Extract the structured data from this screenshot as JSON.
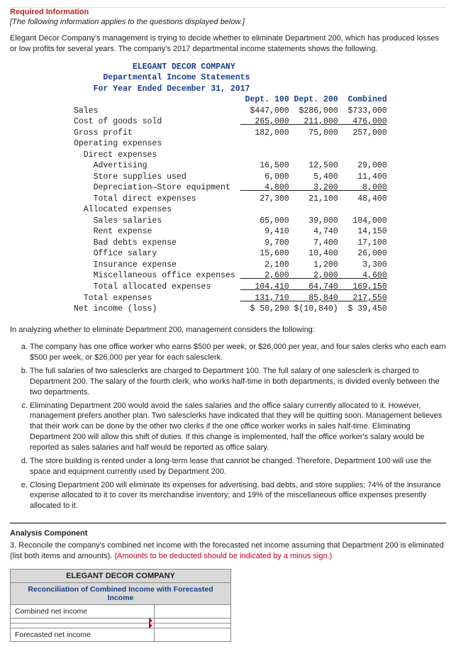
{
  "header": {
    "cutoff_label": "Required Information",
    "note": "[The following information applies to the questions displayed below.]",
    "intro": "Elegant Decor Company's management is trying to decide whether to eliminate Department 200, which has produced losses or low profits for several years. The company's 2017 departmental income statements shows the following."
  },
  "stmt": {
    "company": "ELEGANT DECOR COMPANY",
    "title": "Departmental Income Statements",
    "period": "For Year Ended December 31, 2017",
    "cols": {
      "c1": "Dept. 100",
      "c2": "Dept. 200",
      "c3": "Combined"
    },
    "rows": {
      "sales": {
        "label": "Sales",
        "c1": "$447,000",
        "c2": "$286,000",
        "c3": "$733,000"
      },
      "cogs": {
        "label": "Cost of goods sold",
        "c1": " 265,000",
        "c2": " 211,000",
        "c3": " 476,000",
        "ul": true
      },
      "gp": {
        "label": "Gross profit",
        "c1": " 182,000",
        "c2": "  75,000",
        "c3": " 257,000"
      },
      "opex_hdr": {
        "label": "Operating expenses"
      },
      "dir_hdr": {
        "label": "  Direct expenses"
      },
      "adv": {
        "label": "    Advertising",
        "c1": "  16,500",
        "c2": "  12,500",
        "c3": "  29,000"
      },
      "supp": {
        "label": "    Store supplies used",
        "c1": "   6,000",
        "c2": "   5,400",
        "c3": "  11,400"
      },
      "depr": {
        "label": "    Depreciation—Store equipment",
        "c1": "   4,800",
        "c2": "   3,200",
        "c3": "   8,000",
        "ul": true
      },
      "tde": {
        "label": "    Total direct expenses",
        "c1": "  27,300",
        "c2": "  21,100",
        "c3": "  48,400"
      },
      "alloc_hdr": {
        "label": "  Allocated expenses"
      },
      "ssal": {
        "label": "    Sales salaries",
        "c1": "  65,000",
        "c2": "  39,000",
        "c3": " 104,000"
      },
      "rent": {
        "label": "    Rent expense",
        "c1": "   9,410",
        "c2": "   4,740",
        "c3": "  14,150"
      },
      "bad": {
        "label": "    Bad debts expense",
        "c1": "   9,700",
        "c2": "   7,400",
        "c3": "  17,100"
      },
      "osal": {
        "label": "    Office salary",
        "c1": "  15,600",
        "c2": "  10,400",
        "c3": "  26,000"
      },
      "ins": {
        "label": "    Insurance expense",
        "c1": "   2,100",
        "c2": "   1,200",
        "c3": "   3,300"
      },
      "misc": {
        "label": "    Miscellaneous office expenses",
        "c1": "   2,600",
        "c2": "   2,000",
        "c3": "   4,600",
        "ul": true
      },
      "tae": {
        "label": "    Total allocated expenses",
        "c1": " 104,410",
        "c2": "  64,740",
        "c3": " 169,150",
        "ul": true
      },
      "texp": {
        "label": "  Total expenses",
        "c1": " 131,710",
        "c2": "  85,840",
        "c3": " 217,550",
        "ul": true
      },
      "ni": {
        "label": "Net income (loss)",
        "c1": "$ 50,290",
        "c2": "$(10,840)",
        "c3": "$ 39,450"
      }
    }
  },
  "analysis_intro": "In analyzing whether to eliminate Department 200, management considers the following:",
  "items": {
    "a": "The company has one office worker who earns $500 per week, or $26,000 per year, and four sales clerks who each earn $500 per week, or $26,000 per year for each salesclerk.",
    "b": "The full salaries of two salesclerks are charged to Department 100. The full salary of one salesclerk is charged to Department 200. The salary of the fourth clerk, who works half-time in both departments, is divided evenly between the two departments.",
    "c": "Eliminating Department 200 would avoid the sales salaries and the office salary currently allocated to it. However, management prefers another plan. Two salesclerks have indicated that they will be quitting soon. Management believes that their work can be done by the other two clerks if the one office worker works in sales half-time. Eliminating Department 200 will allow this shift of duties. If this change is implemented, half the office worker's salary would be reported as sales salaries and half would be reported as office salary.",
    "d": "The store building is rented under a long-term lease that cannot be changed. Therefore, Department 100 will use the space and equipment currently used by Department 200.",
    "e": "Closing Department 200 will eliminate its expenses for advertising, bad debts, and store supplies; 74% of the insurance expense allocated to it to cover its merchandise inventory; and 19% of the miscellaneous office expenses presently allocated to it."
  },
  "component": {
    "heading": "Analysis Component",
    "q": "3. Reconcile the company's combined net income with the forecasted net income assuming that Department 200 is eliminated (list both items and amounts). ",
    "red": "(Amounts to be deducted should be indicated by a minus sign.)"
  },
  "recon": {
    "company": "ELEGANT DECOR COMPANY",
    "subtitle": "Reconciliation of Combined Income with Forecasted Income",
    "row1": "Combined net income",
    "row4": "Forecasted net income"
  }
}
